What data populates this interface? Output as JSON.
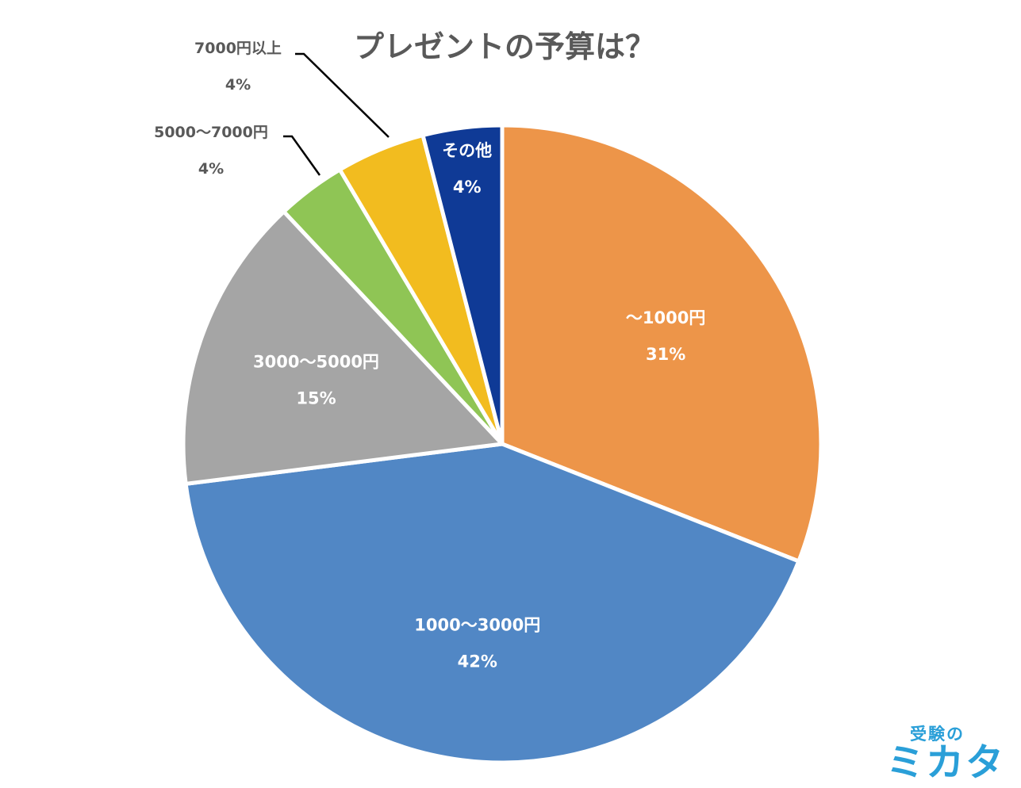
{
  "chart_data": {
    "type": "pie",
    "title": "プレゼントの予算は？",
    "start_angle_deg": 0,
    "direction": "clockwise",
    "slices": [
      {
        "label": "〜1000円",
        "percent_label": "31%",
        "value": 31,
        "color": "#ED9549",
        "label_position": "inside"
      },
      {
        "label": "1000〜3000円",
        "percent_label": "42%",
        "value": 42,
        "color": "#5187C5",
        "label_position": "inside"
      },
      {
        "label": "3000〜5000円",
        "percent_label": "15%",
        "value": 15,
        "color": "#A5A5A5",
        "label_position": "inside"
      },
      {
        "label": "5000〜7000円",
        "percent_label": "4%",
        "value": 3.5,
        "color": "#8FC555",
        "label_position": "outside"
      },
      {
        "label": "7000円以上",
        "percent_label": "4%",
        "value": 4.5,
        "color": "#F2BC1F",
        "label_position": "outside"
      },
      {
        "label": "その他",
        "percent_label": "4%",
        "value": 4,
        "color": "#0F3A96",
        "label_position": "inside"
      }
    ]
  },
  "logo": {
    "top_text": "受験の",
    "bottom_text": "ミカタ",
    "color": "#2A9FD8"
  }
}
